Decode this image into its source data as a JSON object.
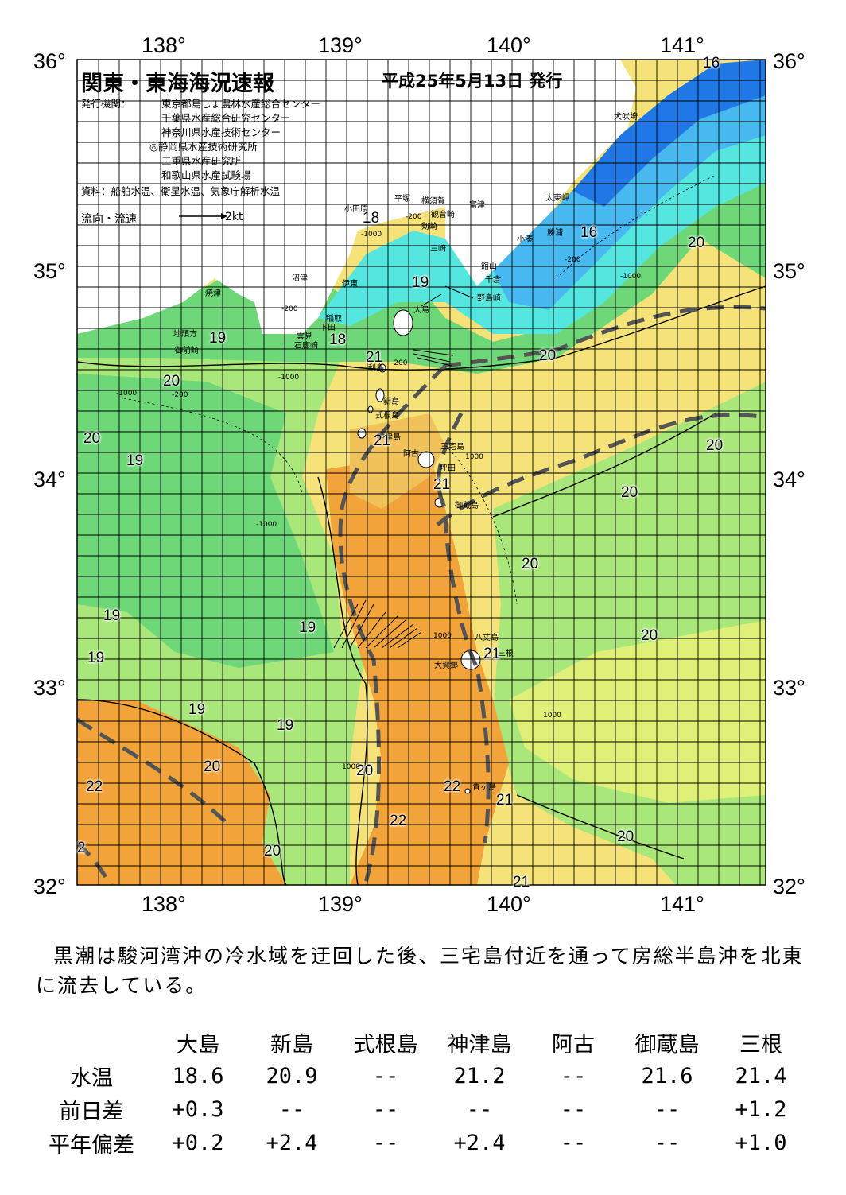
{
  "title": "関東・東海海況速報",
  "date": "平成25年5月13日 発行",
  "agency_label": "発行機関：",
  "agencies": [
    "東京都島しょ農林水産総合センター",
    "千葉県水産総合研究センター",
    "神奈川県水産技術センター",
    "◎静岡県水産技術研究所",
    "三重県水産研究所",
    "和歌山県水産試験場"
  ],
  "source": "資料：船舶水温、衛星水温、気象庁解析水温",
  "flow_label": "流向・流速",
  "flow_scale": "2kt",
  "axes": {
    "lon_labels": [
      "138°",
      "139°",
      "140°",
      "141°"
    ],
    "lat_labels": [
      "36°",
      "35°",
      "34°",
      "33°",
      "32°"
    ],
    "lon_range": [
      137.5,
      141.5
    ],
    "lat_range": [
      32,
      36
    ]
  },
  "places": [
    "犬吠埼",
    "太東岬",
    "勝浦",
    "小湊",
    "館山",
    "千倉",
    "野島崎",
    "富津",
    "横須賀",
    "観音崎",
    "剱崎",
    "三崎",
    "平塚",
    "小田原",
    "沼津",
    "伊東",
    "稲取",
    "下田",
    "雲見",
    "石廊崎",
    "焼津",
    "地頭方",
    "御前崎",
    "大島",
    "利島",
    "新島",
    "式根島",
    "神津島",
    "三宅島",
    "阿古",
    "坪田",
    "御蔵島",
    "八丈島",
    "大賀郷",
    "三根",
    "青ヶ島"
  ],
  "isotherm_labels": [
    "16",
    "16",
    "18",
    "18",
    "19",
    "19",
    "19",
    "19",
    "19",
    "19",
    "19",
    "19",
    "20",
    "20",
    "20",
    "20",
    "20",
    "20",
    "20",
    "20",
    "20",
    "20",
    "20",
    "20",
    "21",
    "21",
    "21",
    "21",
    "21",
    "21",
    "22",
    "22",
    "22",
    "2"
  ],
  "depth_labels": [
    "-200",
    "-1000",
    "-200",
    "-1000",
    "-200",
    "-1000",
    "-200",
    "-1000",
    "-200",
    "1000",
    "1000",
    "1000",
    "-1000",
    "1000"
  ],
  "legend": {
    "colors": {
      "t16": "#1f78e6",
      "t17": "#47b8f0",
      "t18": "#55e6e0",
      "t19": "#6ed879",
      "t20": "#a9e77a",
      "t20b": "#dff079",
      "t21": "#f5e37a",
      "t21b": "#f2c25a",
      "t22": "#f2a33a",
      "land": "#ffffff",
      "kuroshio": "#555555"
    }
  },
  "summary": "黒潮は駿河湾沖の冷水域を迂回した後、三宅島付近を通って房総半島沖を北東に流去している。",
  "table": {
    "stations": [
      "大島",
      "新島",
      "式根島",
      "神津島",
      "阿古",
      "御蔵島",
      "三根"
    ],
    "rows": [
      {
        "label": "水温",
        "values": [
          "18.6",
          "20.9",
          "--",
          "21.2",
          "--",
          "21.6",
          "21.4"
        ]
      },
      {
        "label": "前日差",
        "values": [
          "+0.3",
          "--",
          "--",
          "--",
          "--",
          "--",
          "+1.2"
        ]
      },
      {
        "label": "平年偏差",
        "values": [
          "+0.2",
          "+2.4",
          "--",
          "+2.4",
          "--",
          "--",
          "+1.0"
        ]
      }
    ]
  }
}
